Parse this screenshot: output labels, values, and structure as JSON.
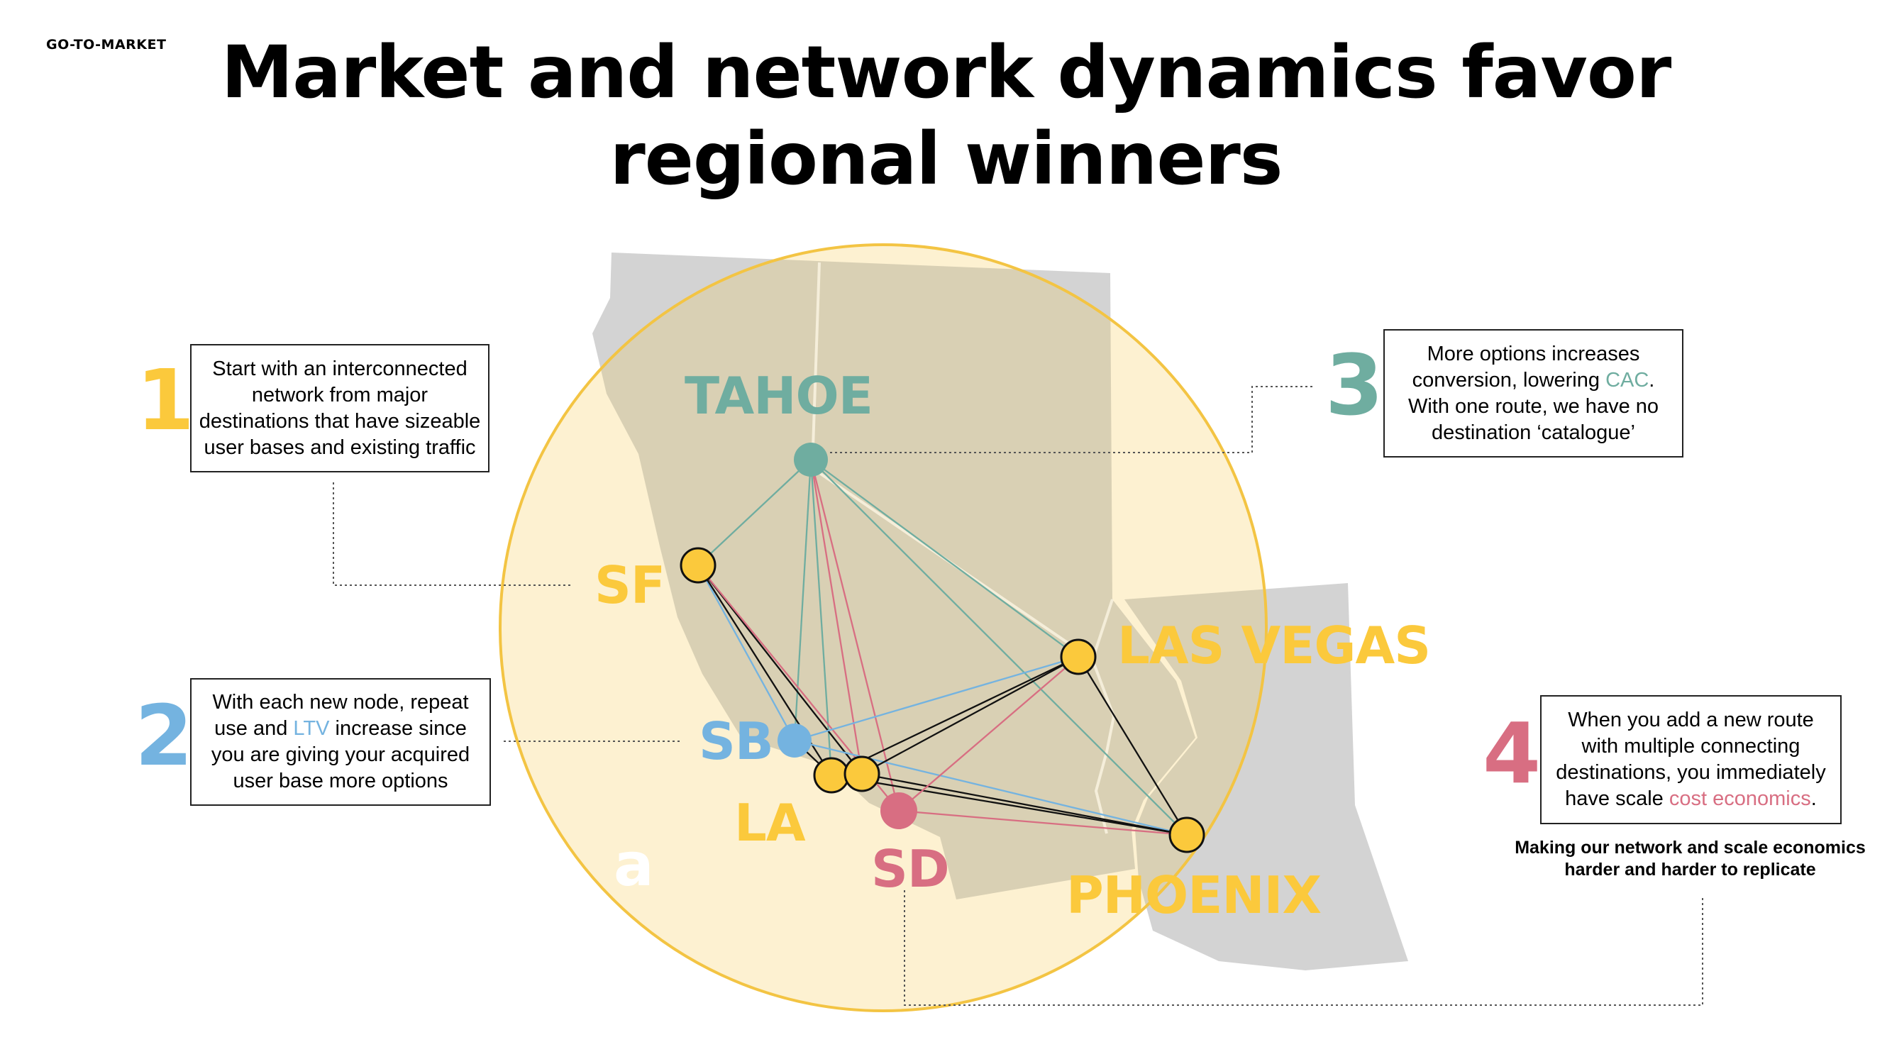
{
  "header": {
    "section_label": "GO-TO-MARKET",
    "title_line1": "Market and network dynamics favor",
    "title_line2": "regional winners"
  },
  "colors": {
    "yellow": "#fbc93c",
    "green": "#6fada0",
    "blue": "#74b3e0",
    "pink": "#d86e82",
    "map_region": "#d9d0b4",
    "map_outside": "#d3d3d3",
    "circle_fill": "#fdf1d1",
    "circle_stroke": "#f3c443"
  },
  "cities": {
    "tahoe": "TAHOE",
    "sf": "SF",
    "las_vegas": "LAS VEGAS",
    "sb": "SB",
    "la": "LA",
    "sd": "SD",
    "phoenix": "PHOENIX"
  },
  "points": [
    {
      "number": "1",
      "text": "Start with an interconnected network from major destinations that have sizeable user bases and existing traffic"
    },
    {
      "number": "2",
      "text_before": "With each new node, repeat use and",
      "highlight": "LTV",
      "text_after": "increase since you are giving your acquired user base more options"
    },
    {
      "number": "3",
      "text_before": "More options increases conversion, lowering",
      "highlight": "CAC",
      "text_after": ". With one route, we have no destination ‘catalogue’"
    },
    {
      "number": "4",
      "text_before": "When you add a new route with multiple connecting destinations, you immediately have scale",
      "highlight": "cost economics",
      "text_after": "."
    }
  ],
  "footnote": "Making our network and scale economics harder and harder to replicate",
  "brand_mark": "a"
}
